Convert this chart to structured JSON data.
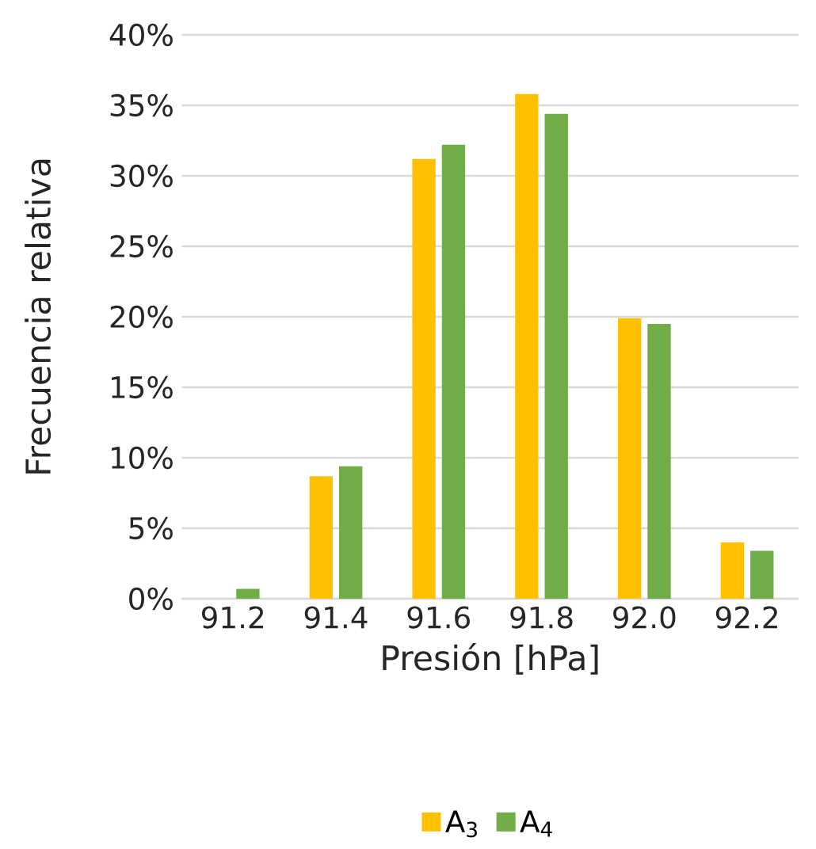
{
  "chart_data": {
    "type": "bar",
    "xlabel": "Presión [hPa]",
    "ylabel": "Frecuencia relativa",
    "categories": [
      "91.2",
      "91.4",
      "91.6",
      "91.8",
      "92.0",
      "92.2"
    ],
    "series": [
      {
        "name": "A$_{3}$",
        "color": "#ffc000",
        "values": [
          0,
          8.7,
          31.2,
          35.8,
          19.9,
          4.0
        ]
      },
      {
        "name": "A$_{4}$",
        "color": "#70ad47",
        "values": [
          0.7,
          9.4,
          32.2,
          34.4,
          19.5,
          3.4
        ]
      }
    ],
    "ylim": [
      0,
      40
    ],
    "yticks": [
      {
        "value": 0,
        "label": "0%"
      },
      {
        "value": 5,
        "label": "5%"
      },
      {
        "value": 10,
        "label": "10%"
      },
      {
        "value": 15,
        "label": "15%"
      },
      {
        "value": 20,
        "label": "20%"
      },
      {
        "value": 25,
        "label": "25%"
      },
      {
        "value": 30,
        "label": "30%"
      },
      {
        "value": 35,
        "label": "35%"
      },
      {
        "value": 40,
        "label": "40%"
      }
    ],
    "grid": "y",
    "legend": "bottom"
  }
}
